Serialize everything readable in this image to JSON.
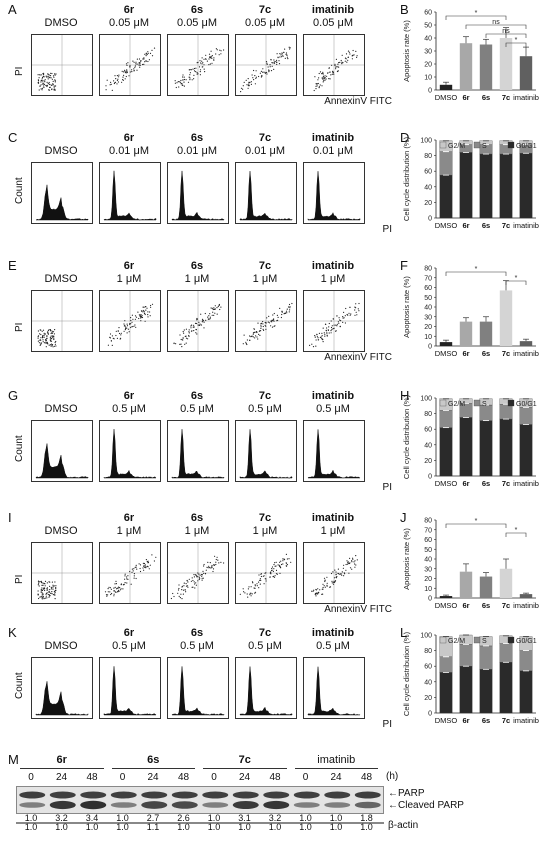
{
  "panels": {
    "A": {
      "letter": "A",
      "axis_y": "PI",
      "axis_x": "AnnexinV FITC",
      "headers": [
        {
          "name": "",
          "dose": "DMSO"
        },
        {
          "name": "6r",
          "dose": "0.05 μM"
        },
        {
          "name": "6s",
          "dose": "0.05 μM"
        },
        {
          "name": "7c",
          "dose": "0.05 μM"
        },
        {
          "name": "imatinib",
          "dose": "0.05 μM"
        }
      ]
    },
    "C": {
      "letter": "C",
      "axis_y": "Count",
      "axis_x": "PI",
      "headers": [
        {
          "name": "",
          "dose": "DMSO"
        },
        {
          "name": "6r",
          "dose": "0.01 μM"
        },
        {
          "name": "6s",
          "dose": "0.01 μM"
        },
        {
          "name": "7c",
          "dose": "0.01 μM"
        },
        {
          "name": "imatinib",
          "dose": "0.01 μM"
        }
      ]
    },
    "E": {
      "letter": "E",
      "axis_y": "PI",
      "axis_x": "AnnexinV FITC",
      "headers": [
        {
          "name": "",
          "dose": "DMSO"
        },
        {
          "name": "6r",
          "dose": "1 μM"
        },
        {
          "name": "6s",
          "dose": "1 μM"
        },
        {
          "name": "7c",
          "dose": "1 μM"
        },
        {
          "name": "imatinib",
          "dose": "1 μM"
        }
      ]
    },
    "G": {
      "letter": "G",
      "axis_y": "Count",
      "axis_x": "PI",
      "headers": [
        {
          "name": "",
          "dose": "DMSO"
        },
        {
          "name": "6r",
          "dose": "0.5 μM"
        },
        {
          "name": "6s",
          "dose": "0.5 μM"
        },
        {
          "name": "7c",
          "dose": "0.5 μM"
        },
        {
          "name": "imatinib",
          "dose": "0.5 μM"
        }
      ]
    },
    "I": {
      "letter": "I",
      "axis_y": "PI",
      "axis_x": "AnnexinV FITC",
      "headers": [
        {
          "name": "",
          "dose": "DMSO"
        },
        {
          "name": "6r",
          "dose": "1 μM"
        },
        {
          "name": "6s",
          "dose": "1 μM"
        },
        {
          "name": "7c",
          "dose": "1 μM"
        },
        {
          "name": "imatinib",
          "dose": "1 μM"
        }
      ]
    },
    "K": {
      "letter": "K",
      "axis_y": "Count",
      "axis_x": "PI",
      "headers": [
        {
          "name": "",
          "dose": "DMSO"
        },
        {
          "name": "6r",
          "dose": "0.5 μM"
        },
        {
          "name": "6s",
          "dose": "0.5 μM"
        },
        {
          "name": "7c",
          "dose": "0.5 μM"
        },
        {
          "name": "imatinib",
          "dose": "0.5 μM"
        }
      ]
    },
    "M": {
      "letter": "M",
      "groups": [
        "6r",
        "6s",
        "7c",
        "imatinib"
      ],
      "times": [
        "0",
        "24",
        "48",
        "0",
        "24",
        "48",
        "0",
        "24",
        "48",
        "0",
        "24",
        "48"
      ],
      "time_unit": "(h)",
      "band_labels": [
        "PARP",
        "Cleaved PARP"
      ],
      "actin_label": "β-actin",
      "parp_ratios": [
        "1.0",
        "3.2",
        "3.4",
        "1.0",
        "2.7",
        "2.6",
        "1.0",
        "3.1",
        "3.2",
        "1.0",
        "1.0",
        "1.8"
      ],
      "actin_ratios": [
        "1.0",
        "1.0",
        "1.0",
        "1.0",
        "1.1",
        "1.0",
        "1.0",
        "1.0",
        "1.0",
        "1.0",
        "1.0",
        "1.0"
      ]
    }
  },
  "letters": {
    "B": "B",
    "D": "D",
    "F": "F",
    "H": "H",
    "J": "J",
    "L": "L"
  },
  "chart_data": [
    {
      "id": "B",
      "type": "bar",
      "categories": [
        "DMSO",
        "6r",
        "6s",
        "7c",
        "imatinib"
      ],
      "values": [
        4,
        36,
        35,
        40,
        26
      ],
      "errors": [
        2,
        5,
        4,
        8,
        7
      ],
      "colors": [
        "#222222",
        "#a8a8a8",
        "#808080",
        "#d4d4d4",
        "#606060"
      ],
      "ylabel": "Apoptosis rate (%)",
      "ylim": [
        0,
        60
      ],
      "yticks": [
        0,
        10,
        20,
        30,
        40,
        50,
        60
      ],
      "significance": [
        {
          "from": 0,
          "to": 3,
          "label": "*"
        },
        {
          "from": 1,
          "to": 4,
          "label": "ns"
        },
        {
          "from": 2,
          "to": 4,
          "label": "ns"
        },
        {
          "from": 3,
          "to": 4,
          "label": "*"
        }
      ]
    },
    {
      "id": "D",
      "type": "bar",
      "stacked": true,
      "categories": [
        "DMSO",
        "6r",
        "6s",
        "7c",
        "imatinib"
      ],
      "series": [
        {
          "name": "G0/G1",
          "color": "#2a2a2a",
          "values": [
            55,
            84,
            82,
            82,
            83
          ]
        },
        {
          "name": "S",
          "color": "#8a8a8a",
          "values": [
            30,
            10,
            12,
            12,
            11
          ]
        },
        {
          "name": "G2/M",
          "color": "#c8c8c8",
          "values": [
            14,
            5,
            5,
            5,
            5
          ]
        }
      ],
      "ylabel": "Cell cycle distribution (%)",
      "ylim": [
        0,
        100
      ],
      "yticks": [
        0,
        20,
        40,
        60,
        80,
        100
      ],
      "legend": [
        "G2/M",
        "S",
        "G0/G1"
      ]
    },
    {
      "id": "F",
      "type": "bar",
      "categories": [
        "DMSO",
        "6r",
        "6s",
        "7c",
        "imatinib"
      ],
      "values": [
        4,
        25,
        25,
        57,
        5
      ],
      "errors": [
        2,
        4,
        5,
        10,
        2
      ],
      "colors": [
        "#222222",
        "#a8a8a8",
        "#808080",
        "#d4d4d4",
        "#606060"
      ],
      "ylabel": "Apoptosis rate (%)",
      "ylim": [
        0,
        80
      ],
      "yticks": [
        0,
        10,
        20,
        30,
        40,
        50,
        60,
        70,
        80
      ],
      "significance": [
        {
          "from": 0,
          "to": 3,
          "label": "*"
        },
        {
          "from": 3,
          "to": 4,
          "label": "*"
        }
      ]
    },
    {
      "id": "H",
      "type": "bar",
      "stacked": true,
      "categories": [
        "DMSO",
        "6r",
        "6s",
        "7c",
        "imatinib"
      ],
      "series": [
        {
          "name": "G0/G1",
          "color": "#2a2a2a",
          "values": [
            62,
            75,
            71,
            73,
            66
          ]
        },
        {
          "name": "S",
          "color": "#8a8a8a",
          "values": [
            22,
            18,
            20,
            19,
            22
          ]
        },
        {
          "name": "G2/M",
          "color": "#c8c8c8",
          "values": [
            15,
            6,
            8,
            7,
            11
          ]
        }
      ],
      "ylabel": "Cell cycle distribution (%)",
      "ylim": [
        0,
        100
      ],
      "yticks": [
        0,
        20,
        40,
        60,
        80,
        100
      ],
      "legend": [
        "G2/M",
        "S",
        "G0/G1"
      ]
    },
    {
      "id": "J",
      "type": "bar",
      "categories": [
        "DMSO",
        "6r",
        "6s",
        "7c",
        "imatinib"
      ],
      "values": [
        2,
        27,
        22,
        30,
        4
      ],
      "errors": [
        1,
        8,
        4,
        10,
        1
      ],
      "colors": [
        "#222222",
        "#a8a8a8",
        "#808080",
        "#d4d4d4",
        "#606060"
      ],
      "ylabel": "Apoptosis rate (%)",
      "ylim": [
        0,
        80
      ],
      "yticks": [
        0,
        10,
        20,
        30,
        40,
        50,
        60,
        70,
        80
      ],
      "significance": [
        {
          "from": 0,
          "to": 3,
          "label": "*"
        },
        {
          "from": 3,
          "to": 4,
          "label": "*"
        }
      ]
    },
    {
      "id": "L",
      "type": "bar",
      "stacked": true,
      "categories": [
        "DMSO",
        "6r",
        "6s",
        "7c",
        "imatinib"
      ],
      "series": [
        {
          "name": "G0/G1",
          "color": "#2a2a2a",
          "values": [
            52,
            60,
            56,
            65,
            54
          ]
        },
        {
          "name": "S",
          "color": "#8a8a8a",
          "values": [
            20,
            28,
            30,
            24,
            26
          ]
        },
        {
          "name": "G2/M",
          "color": "#c8c8c8",
          "values": [
            26,
            12,
            12,
            10,
            18
          ]
        }
      ],
      "ylabel": "Cell cycle distribution (%)",
      "ylim": [
        0,
        100
      ],
      "yticks": [
        0,
        20,
        40,
        60,
        80,
        100
      ],
      "legend": [
        "G2/M",
        "S",
        "G0/G1"
      ]
    }
  ]
}
